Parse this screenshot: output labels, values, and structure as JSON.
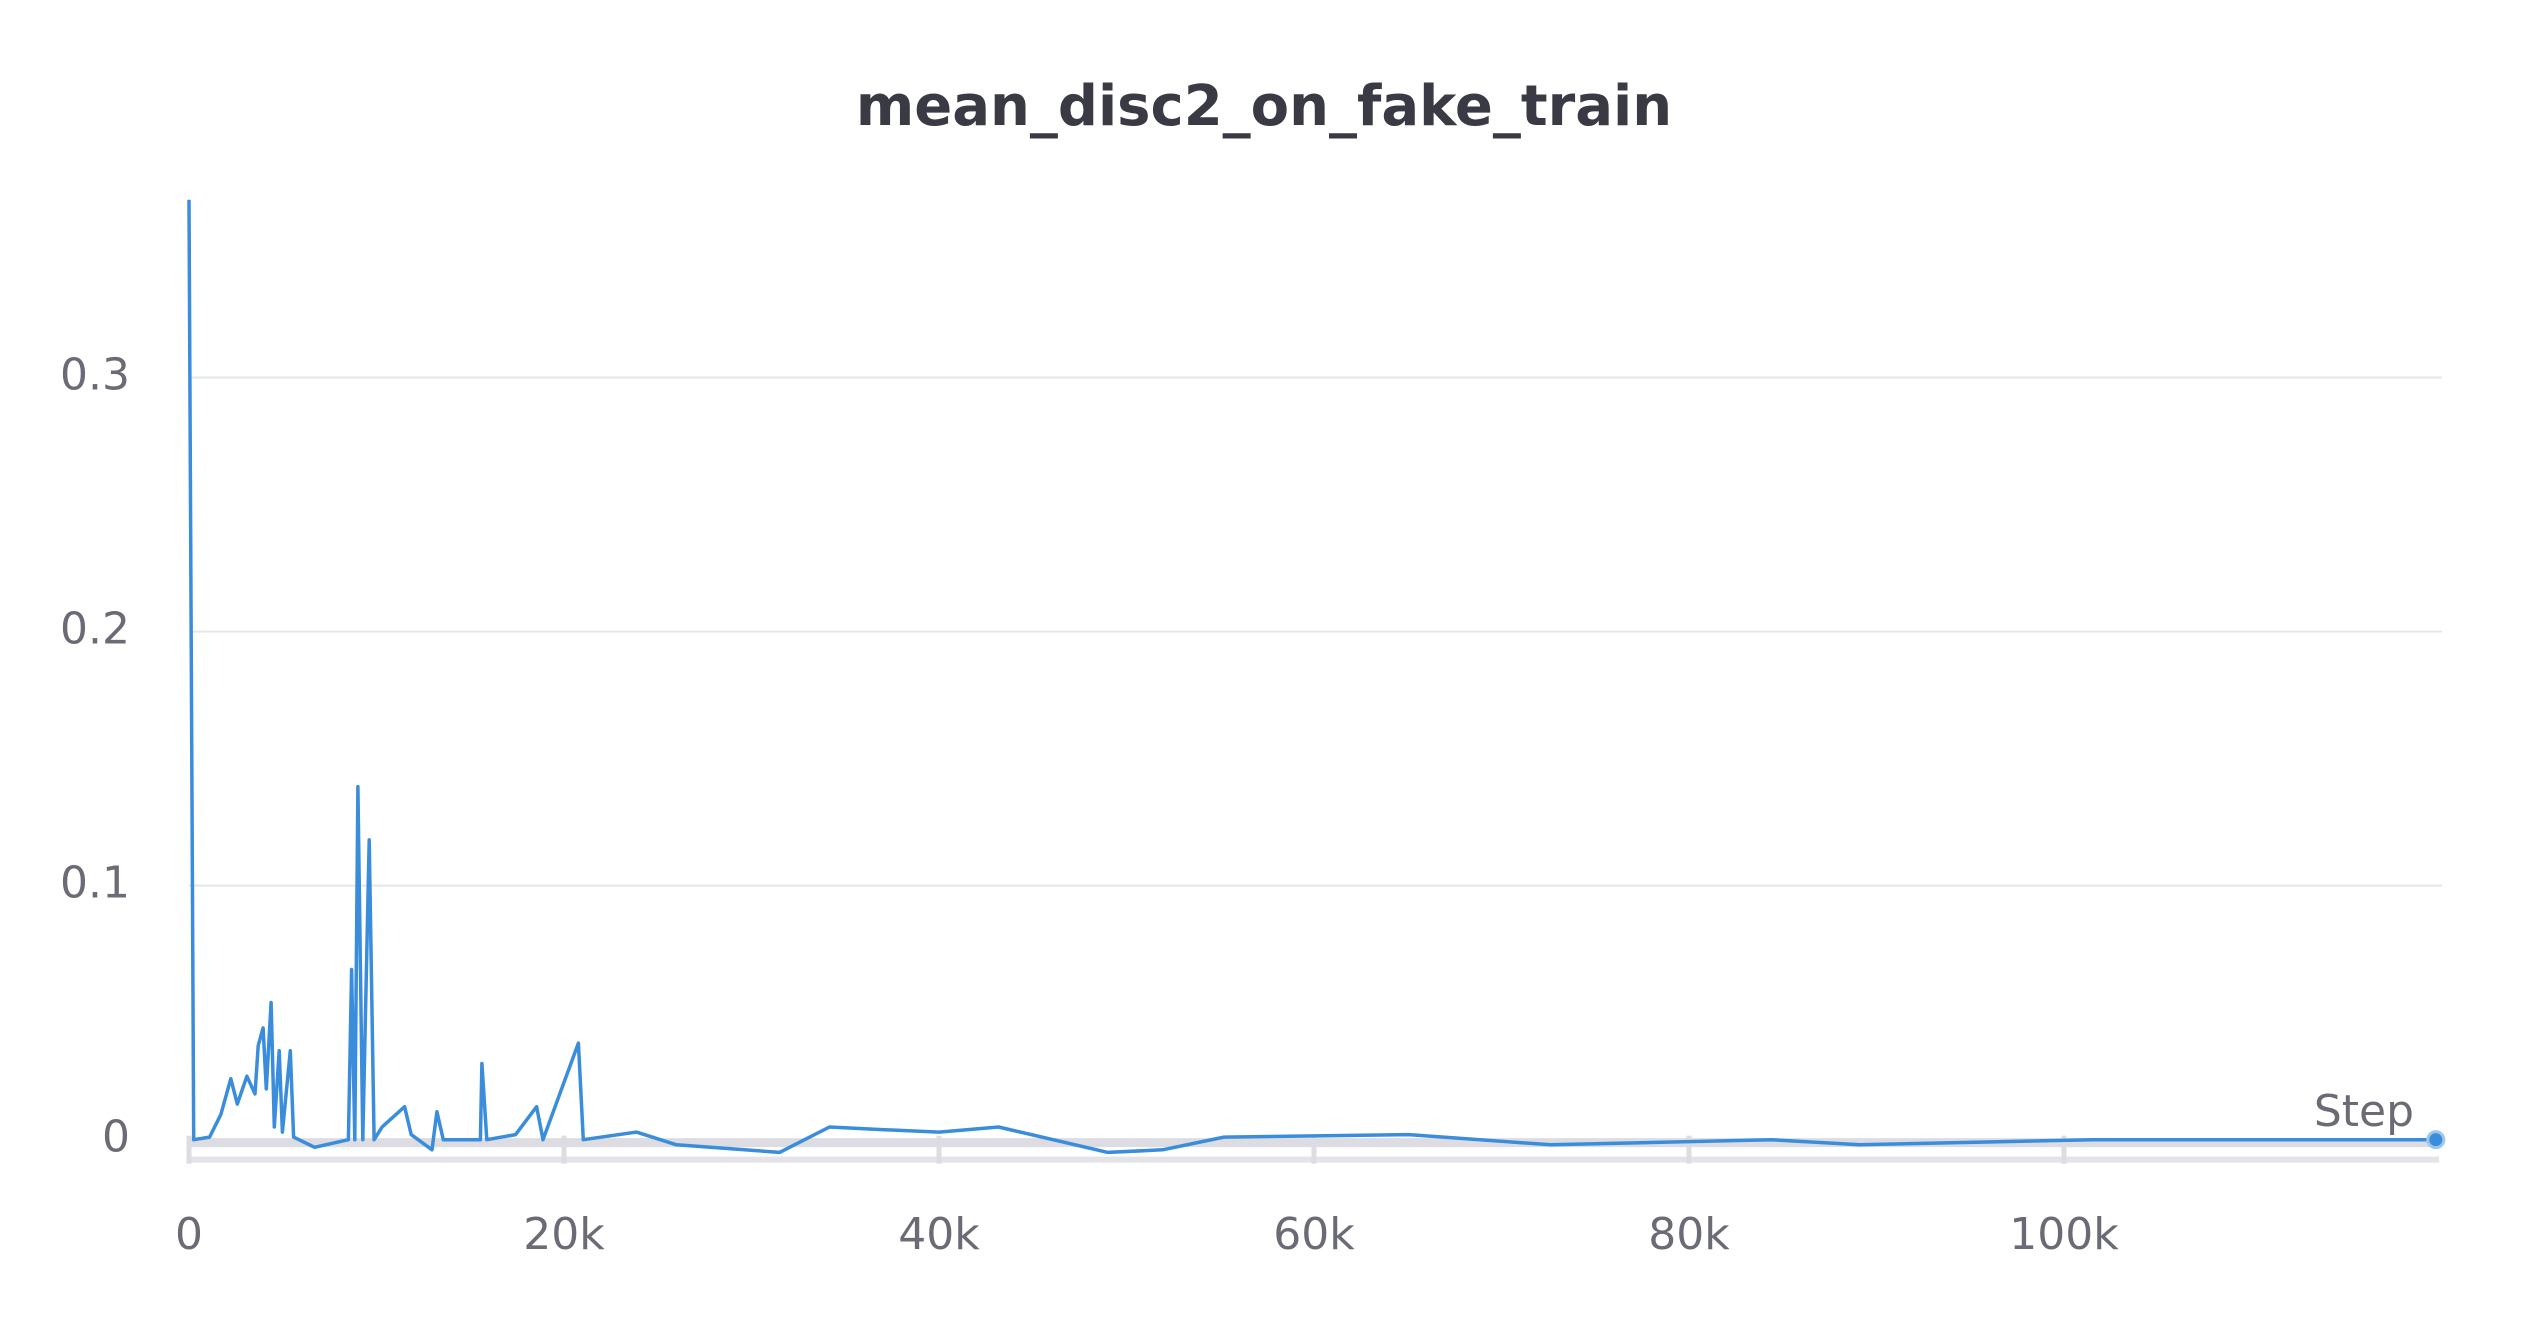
{
  "chart_data": {
    "type": "line",
    "title": "mean_disc2_on_fake_train",
    "x_label": "Step",
    "color": "#3a8ddb",
    "grid": true,
    "xlim": [
      0,
      120000
    ],
    "ylim": [
      -0.008,
      0.375
    ],
    "xticks": [
      0,
      {
        "value": 20000,
        "label": "20k"
      },
      {
        "value": 40000,
        "label": "40k"
      },
      {
        "value": 60000,
        "label": "60k"
      },
      {
        "value": 80000,
        "label": "80k"
      },
      {
        "value": 100000,
        "label": "100k"
      }
    ],
    "yticks": [
      0,
      0.1,
      0.2,
      0.3
    ],
    "x": [
      0,
      250,
      1100,
      1700,
      2230,
      2575,
      3090,
      3520,
      3690,
      3950,
      4120,
      4380,
      4550,
      4810,
      4980,
      5400,
      5580,
      6700,
      8500,
      8670,
      8840,
      9010,
      9270,
      9610,
      9870,
      10300,
      11500,
      11850,
      12960,
      13220,
      13560,
      15540,
      15620,
      15880,
      17420,
      18540,
      18880,
      20770,
      21030,
      23860,
      26000,
      31500,
      34160,
      36820,
      40000,
      43180,
      49000,
      51930,
      55200,
      65060,
      72620,
      84380,
      89100,
      101550,
      119830
    ],
    "values": [
      0.37,
      0.0,
      0.001,
      0.01,
      0.024,
      0.014,
      0.025,
      0.018,
      0.037,
      0.044,
      0.02,
      0.054,
      0.005,
      0.035,
      0.003,
      0.035,
      0.001,
      -0.003,
      0.0,
      0.067,
      0.0,
      0.139,
      0.0,
      0.118,
      0.0,
      0.005,
      0.013,
      0.002,
      -0.004,
      0.011,
      0.0,
      0.0,
      0.03,
      0.0,
      0.002,
      0.013,
      0.0,
      0.038,
      0.0,
      0.003,
      -0.002,
      -0.005,
      0.005,
      0.004,
      0.003,
      0.005,
      -0.005,
      -0.004,
      0.001,
      0.002,
      -0.002,
      0.0,
      -0.002,
      0.0,
      0.0
    ]
  }
}
